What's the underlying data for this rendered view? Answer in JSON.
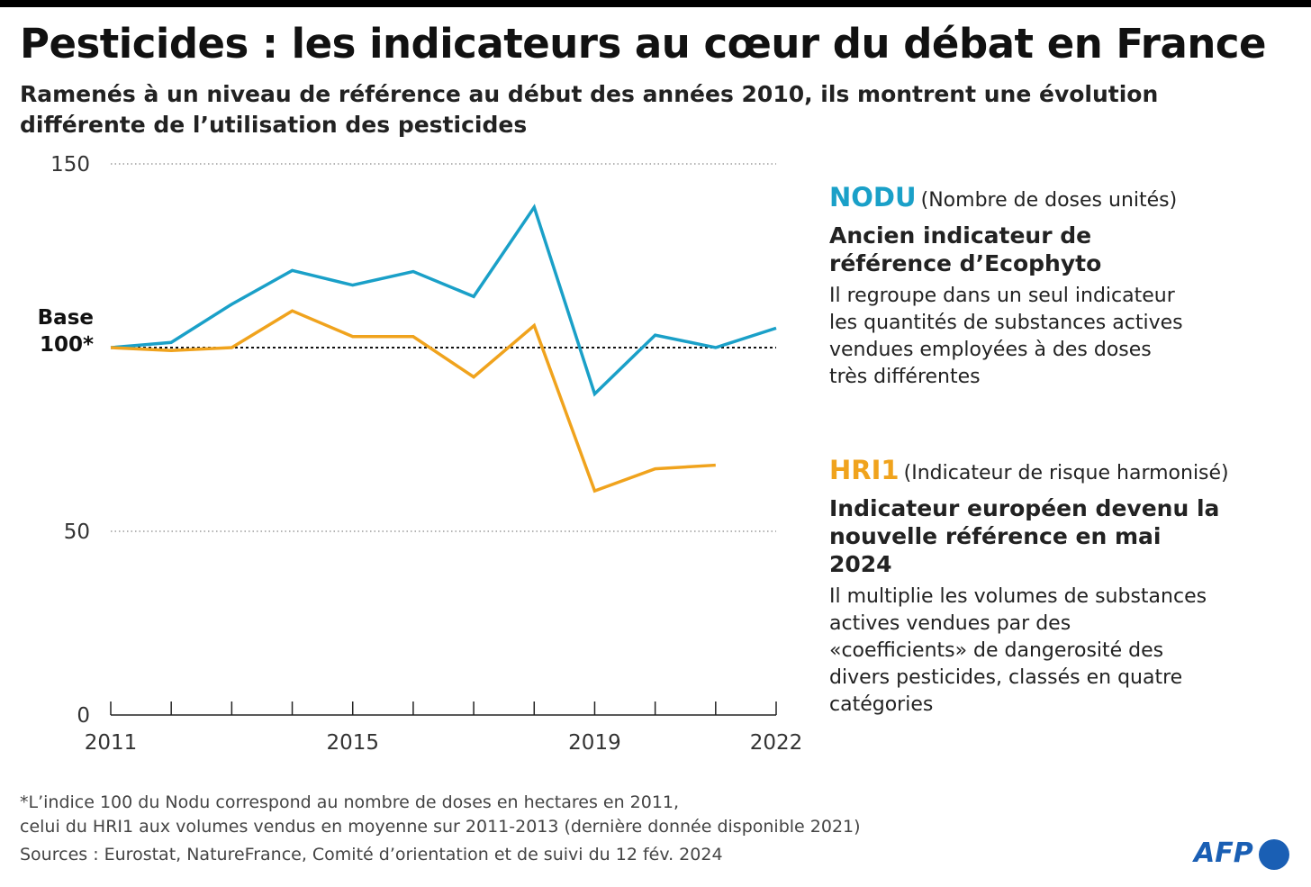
{
  "title": "Pesticides : les indicateurs au cœur du débat en France",
  "subtitle": "Ramenés à un niveau de référence au début des années 2010,  ils montrent une évolution différente de l’utilisation des pesticides",
  "chart_data": {
    "type": "line",
    "x": [
      2011,
      2012,
      2013,
      2014,
      2015,
      2016,
      2017,
      2018,
      2019,
      2020,
      2021,
      2022
    ],
    "x_tick_labels": [
      "2011",
      "2015",
      "2019",
      "2022"
    ],
    "y_tick_labels": [
      "150",
      "50",
      "0"
    ],
    "ylim": [
      0,
      150
    ],
    "base_label_line1": "Base",
    "base_label_line2": "100*",
    "reference_line": 100,
    "grid": "dotted at 50 and 150",
    "series": [
      {
        "name": "NODU",
        "color": "#1aa0c8",
        "values": [
          100,
          101.4,
          111.8,
          121,
          117,
          120.7,
          113.9,
          138.2,
          87.4,
          103.4,
          100,
          105.3
        ]
      },
      {
        "name": "HRI1",
        "color": "#f0a31d",
        "values": [
          100,
          99.2,
          100,
          110,
          103,
          103,
          92,
          106,
          61,
          67,
          68,
          null
        ]
      }
    ]
  },
  "legend": {
    "nodu": {
      "name": "NODU",
      "full": "(Nombre de doses unités)",
      "heading": "Ancien indicateur de référence d’Ecophyto",
      "desc": "Il regroupe dans un seul indicateur les quantités de substances actives vendues employées à des doses très différentes"
    },
    "hri1": {
      "name": "HRI1",
      "full": "(Indicateur de risque harmonisé)",
      "heading": "Indicateur européen devenu la nouvelle référence en mai 2024",
      "desc": "Il multiplie les volumes de substances actives vendues par des «coefficients» de dangerosité des divers pesticides, classés en quatre catégories"
    }
  },
  "footnote_line1": "*L’indice 100 du Nodu correspond au nombre de doses en hectares en 2011,",
  "footnote_line2": "celui du HRI1 aux volumes vendus en moyenne sur 2011-2013 (dernière donnée disponible 2021)",
  "sources": "Sources : Eurostat, NatureFrance, Comité d’orientation et de suivi du 12 fév. 2024",
  "logo": "AFP"
}
